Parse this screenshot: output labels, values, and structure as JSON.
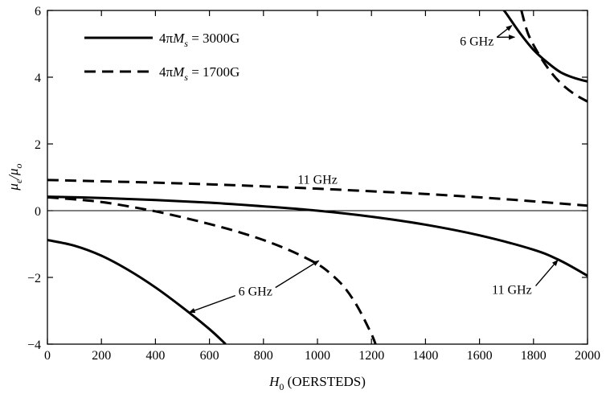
{
  "chart_data": {
    "type": "line",
    "xlabel": {
      "symbol": "H",
      "subscript": "0",
      "text": " (OERSTEDS)"
    },
    "ylabel": {
      "main": "μ",
      "sub1": "e",
      "mid": "/μ",
      "sub2": "o"
    },
    "xlim": [
      0,
      2000
    ],
    "ylim": [
      -4,
      6
    ],
    "xticks": [
      0,
      200,
      400,
      600,
      800,
      1000,
      1200,
      1400,
      1600,
      1800,
      2000
    ],
    "yticks": [
      -4,
      -2,
      0,
      2,
      4,
      6
    ],
    "grid": false,
    "zero_line": true,
    "legend_position": "top-left",
    "legend": [
      {
        "prefix": "4π",
        "symbol": "M",
        "subscript": "s",
        "suffix": " = 3000G",
        "style": "solid"
      },
      {
        "prefix": "4π",
        "symbol": "M",
        "subscript": "s",
        "suffix": " = 1700G",
        "style": "dashed"
      }
    ],
    "series": [
      {
        "style": "solid",
        "frequency": "11 GHz",
        "x": [
          0,
          200,
          400,
          600,
          800,
          1000,
          1200,
          1400,
          1600,
          1800,
          1900,
          2000
        ],
        "y": [
          0.42,
          0.38,
          0.32,
          0.24,
          0.13,
          0.0,
          -0.18,
          -0.42,
          -0.74,
          -1.17,
          -1.5,
          -1.95
        ]
      },
      {
        "style": "dashed",
        "frequency": "11 GHz",
        "x": [
          0,
          200,
          400,
          600,
          800,
          1000,
          1200,
          1400,
          1600,
          1800,
          2000
        ],
        "y": [
          0.92,
          0.88,
          0.84,
          0.79,
          0.73,
          0.66,
          0.58,
          0.5,
          0.4,
          0.28,
          0.15
        ]
      },
      {
        "style": "solid",
        "frequency": "6 GHz",
        "x": [
          0,
          100,
          200,
          300,
          400,
          500,
          600,
          660
        ],
        "y": [
          -0.88,
          -1.05,
          -1.35,
          -1.78,
          -2.3,
          -2.9,
          -3.55,
          -4.0
        ]
      },
      {
        "style": "dashed",
        "frequency": "6 GHz",
        "x": [
          0,
          100,
          200,
          300,
          400,
          500,
          600,
          700,
          800,
          900,
          1000,
          1050,
          1100,
          1150,
          1200,
          1215
        ],
        "y": [
          0.4,
          0.34,
          0.26,
          0.13,
          -0.02,
          -0.2,
          -0.4,
          -0.62,
          -0.88,
          -1.2,
          -1.6,
          -1.9,
          -2.3,
          -2.9,
          -3.7,
          -4.0
        ]
      },
      {
        "style": "solid",
        "frequency": "6 GHz",
        "x": [
          1690,
          1700,
          1750,
          1800,
          1850,
          1900,
          1950,
          2000
        ],
        "y": [
          6.0,
          5.9,
          5.32,
          4.82,
          4.45,
          4.15,
          3.98,
          3.87
        ]
      },
      {
        "style": "dashed",
        "frequency": "6 GHz",
        "x": [
          1755,
          1780,
          1820,
          1860,
          1900,
          1950,
          2000
        ],
        "y": [
          6.0,
          5.3,
          4.68,
          4.2,
          3.83,
          3.5,
          3.27
        ]
      }
    ],
    "annotations": [
      {
        "text": "6 GHz",
        "x": 1590,
        "y": 5.1,
        "anchor": "middle",
        "arrows": [
          [
            1720,
            5.55
          ],
          [
            1730,
            5.2
          ]
        ]
      },
      {
        "text": "11 GHz",
        "x": 1000,
        "y": 0.95,
        "anchor": "middle",
        "arrows": []
      },
      {
        "text": "6 GHz",
        "x": 770,
        "y": -2.4,
        "anchor": "middle",
        "arrows": [
          [
            525,
            -3.05
          ],
          [
            1005,
            -1.5
          ]
        ]
      },
      {
        "text": "11 GHz",
        "x": 1720,
        "y": -2.35,
        "anchor": "middle",
        "arrows": [
          [
            1890,
            -1.48
          ]
        ]
      }
    ]
  }
}
